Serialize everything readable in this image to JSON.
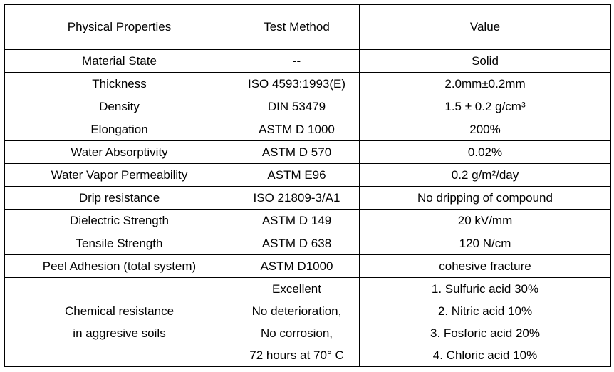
{
  "headers": [
    "Physical Properties",
    "Test Method",
    "Value"
  ],
  "rows": [
    {
      "property": "Material State",
      "method": "--",
      "value": "Solid"
    },
    {
      "property": "Thickness",
      "method": "ISO 4593:1993(E)",
      "value": "2.0mm±0.2mm"
    },
    {
      "property": "Density",
      "method": "DIN 53479",
      "value": "1.5 ± 0.2 g/cm³"
    },
    {
      "property": "Elongation",
      "method": "ASTM D 1000",
      "value": "200%"
    },
    {
      "property": "Water Absorptivity",
      "method": "ASTM D 570",
      "value": "0.02%"
    },
    {
      "property": "Water Vapor Permeability",
      "method": "ASTM E96",
      "value": "0.2 g/m²/day"
    },
    {
      "property": "Drip resistance",
      "method": "ISO 21809-3/A1",
      "value": "No dripping of compound"
    },
    {
      "property": "Dielectric Strength",
      "method": "ASTM D 149",
      "value": "20 kV/mm"
    },
    {
      "property": "Tensile Strength",
      "method": "ASTM D 638",
      "value": "120 N/cm"
    },
    {
      "property": "Peel Adhesion (total system)",
      "method": "ASTM D1000",
      "value": "cohesive fracture"
    }
  ],
  "chemical": {
    "property_lines": [
      "Chemical resistance",
      "in aggresive soils"
    ],
    "method_lines": [
      "Excellent",
      "No deterioration,",
      "No corrosion,",
      "72 hours at 70° C"
    ],
    "value_lines": [
      "1. Sulfuric acid 30%",
      "2. Nitric acid 10%",
      "3. Fosforic acid 20%",
      "4. Chloric acid 10%"
    ]
  }
}
